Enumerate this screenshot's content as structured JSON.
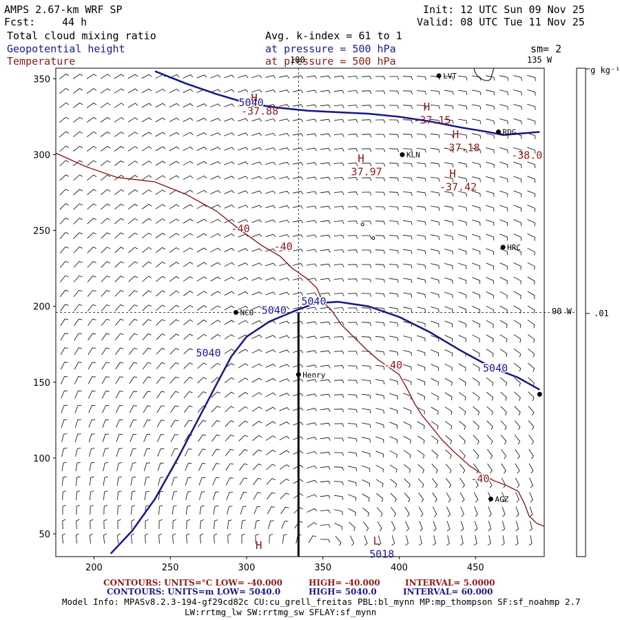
{
  "header": {
    "title_left": "AMPS 2.67-km WRF SP",
    "fcst_label": "Fcst:",
    "fcst_value": "44 h",
    "init": "Init: 12 UTC Sun 09 Nov 25",
    "valid": "Valid: 08 UTC Tue 11 Nov 25",
    "field1": "Total cloud mixing ratio",
    "field2": "Geopotential height",
    "field3": "Temperature",
    "avg": "Avg. k-index =  61 to   1",
    "pressure2": "at pressure =  500 hPa",
    "pressure3": "at pressure =  500 hPa",
    "smoothing": "sm= 2"
  },
  "colorbar": {
    "unit_label": "g kg⁻¹",
    "tick_label": ".01"
  },
  "map_labels": {
    "lon_180": "180",
    "lon_135w": "135 W",
    "lon_90w": "90 W"
  },
  "stations": [
    {
      "name": "LVT",
      "x": 426,
      "y": 352
    },
    {
      "name": "RDG",
      "x": 465,
      "y": 315
    },
    {
      "name": "KLN",
      "x": 402,
      "y": 300
    },
    {
      "name": "HRC",
      "x": 468,
      "y": 239
    },
    {
      "name": "NCO",
      "x": 293,
      "y": 196
    },
    {
      "name": "Henry",
      "x": 334,
      "y": 155
    },
    {
      "name": "AGZ",
      "x": 460,
      "y": 73
    },
    {
      "name": "",
      "x": 492,
      "y": 142
    }
  ],
  "extrema": [
    {
      "letter": "H",
      "value": "-37.88",
      "x": 305,
      "y": 335
    },
    {
      "letter": "H",
      "value": "-37.15",
      "x": 418,
      "y": 329
    },
    {
      "letter": "H",
      "value": "-37.18",
      "x": 437,
      "y": 311
    },
    {
      "letter": "",
      "value": "-38.0",
      "x": 480,
      "y": 306
    },
    {
      "letter": "H",
      "value": "37.97",
      "x": 375,
      "y": 295
    },
    {
      "letter": "H",
      "value": "-37.42",
      "x": 435,
      "y": 285
    },
    {
      "letter": "L",
      "value": "5018",
      "x": 385,
      "y": 43
    },
    {
      "letter": "H",
      "value": "",
      "x": 308,
      "y": 40
    }
  ],
  "contour_labels": [
    {
      "text": "5040",
      "x": 303,
      "y": 332,
      "color": "#1a1a8c"
    },
    {
      "text": "5040",
      "x": 344,
      "y": 201,
      "color": "#1a1a8c"
    },
    {
      "text": "5040",
      "x": 318,
      "y": 195,
      "color": "#1a1a8c"
    },
    {
      "text": "5040",
      "x": 275,
      "y": 167,
      "color": "#1a1a8c"
    },
    {
      "text": "5040",
      "x": 463,
      "y": 157,
      "color": "#1a1a8c"
    },
    {
      "text": "-40",
      "x": 296,
      "y": 249,
      "color": "#8b1a1a"
    },
    {
      "text": "-40",
      "x": 324,
      "y": 237,
      "color": "#8b1a1a"
    },
    {
      "text": "-40",
      "x": 396,
      "y": 159,
      "color": "#8b1a1a"
    },
    {
      "text": "-40",
      "x": 453,
      "y": 84,
      "color": "#8b1a1a"
    }
  ],
  "chart_data": {
    "type": "contour",
    "xlim": [
      175,
      495
    ],
    "ylim": [
      35,
      357
    ],
    "x_ticks": [
      200,
      250,
      300,
      350,
      400,
      450
    ],
    "y_ticks": [
      50,
      100,
      150,
      200,
      250,
      300,
      350
    ],
    "crosshair": {
      "x": 334,
      "y": 196
    },
    "cross_section": {
      "x": 334,
      "y_from": 35,
      "y_to": 196
    },
    "geopotential_height_5040": [
      [
        211,
        37
      ],
      [
        225,
        52
      ],
      [
        240,
        73
      ],
      [
        255,
        100
      ],
      [
        268,
        125
      ],
      [
        280,
        148
      ],
      [
        290,
        167
      ],
      [
        300,
        180
      ],
      [
        315,
        190
      ],
      [
        334,
        198
      ],
      [
        345,
        202
      ],
      [
        360,
        203
      ],
      [
        380,
        200
      ],
      [
        400,
        193
      ],
      [
        420,
        183
      ],
      [
        440,
        171
      ],
      [
        460,
        160
      ],
      [
        478,
        153
      ],
      [
        492,
        145
      ]
    ],
    "geopotential_height_5040_top": [
      [
        240,
        355
      ],
      [
        260,
        347
      ],
      [
        280,
        340
      ],
      [
        300,
        334
      ],
      [
        320,
        331
      ],
      [
        340,
        329
      ],
      [
        360,
        328
      ],
      [
        380,
        327
      ],
      [
        400,
        325
      ],
      [
        420,
        322
      ],
      [
        440,
        318
      ],
      [
        458,
        315
      ],
      [
        468,
        313
      ],
      [
        480,
        314
      ],
      [
        492,
        315
      ]
    ],
    "temperature_minus40": [
      [
        175,
        301
      ],
      [
        195,
        292
      ],
      [
        215,
        285
      ],
      [
        240,
        282
      ],
      [
        260,
        274
      ],
      [
        280,
        263
      ],
      [
        295,
        251
      ],
      [
        310,
        240
      ],
      [
        322,
        233
      ],
      [
        330,
        225
      ],
      [
        340,
        218
      ],
      [
        346,
        212
      ],
      [
        350,
        203
      ],
      [
        356,
        197
      ],
      [
        362,
        188
      ],
      [
        370,
        180
      ],
      [
        378,
        172
      ],
      [
        386,
        165
      ],
      [
        393,
        160
      ],
      [
        400,
        155
      ],
      [
        405,
        146
      ],
      [
        410,
        136
      ],
      [
        415,
        128
      ],
      [
        420,
        122
      ],
      [
        428,
        112
      ],
      [
        436,
        104
      ],
      [
        446,
        95
      ],
      [
        455,
        89
      ],
      [
        462,
        85
      ],
      [
        470,
        82
      ],
      [
        478,
        78
      ],
      [
        482,
        70
      ],
      [
        485,
        62
      ],
      [
        490,
        57
      ],
      [
        495,
        55
      ]
    ],
    "contours": {
      "temperature": {
        "units": "°C",
        "low": "-40.000",
        "high": "-40.000",
        "interval": "5.0000"
      },
      "height": {
        "units": "m",
        "low": "5040.0",
        "high": "5040.0",
        "interval": "60.000"
      }
    }
  },
  "footer": {
    "line1_left": "CONTOURS:  UNITS=°C  LOW= -40.000",
    "line1_mid": "HIGH= -40.000",
    "line1_right": "INTERVAL=   5.0000",
    "line2_left": "CONTOURS:  UNITS=m  LOW=  5040.0",
    "line2_mid": "HIGH=  5040.0",
    "line2_right": "INTERVAL=   60.000",
    "model_info": "Model Info: MPASv8.2.3-194-gf29cd82c CU:cu_grell_freitas PBL:bl_mynn MP:mp_thompson SF:sf_noahmp 2.7",
    "model_info2": "LW:rrtmg_lw SW:rrtmg_sw SFLAY:sf_mynn"
  },
  "colors": {
    "height": "#1a1a8c",
    "temperature": "#8b1a1a",
    "barb": "#000000"
  }
}
